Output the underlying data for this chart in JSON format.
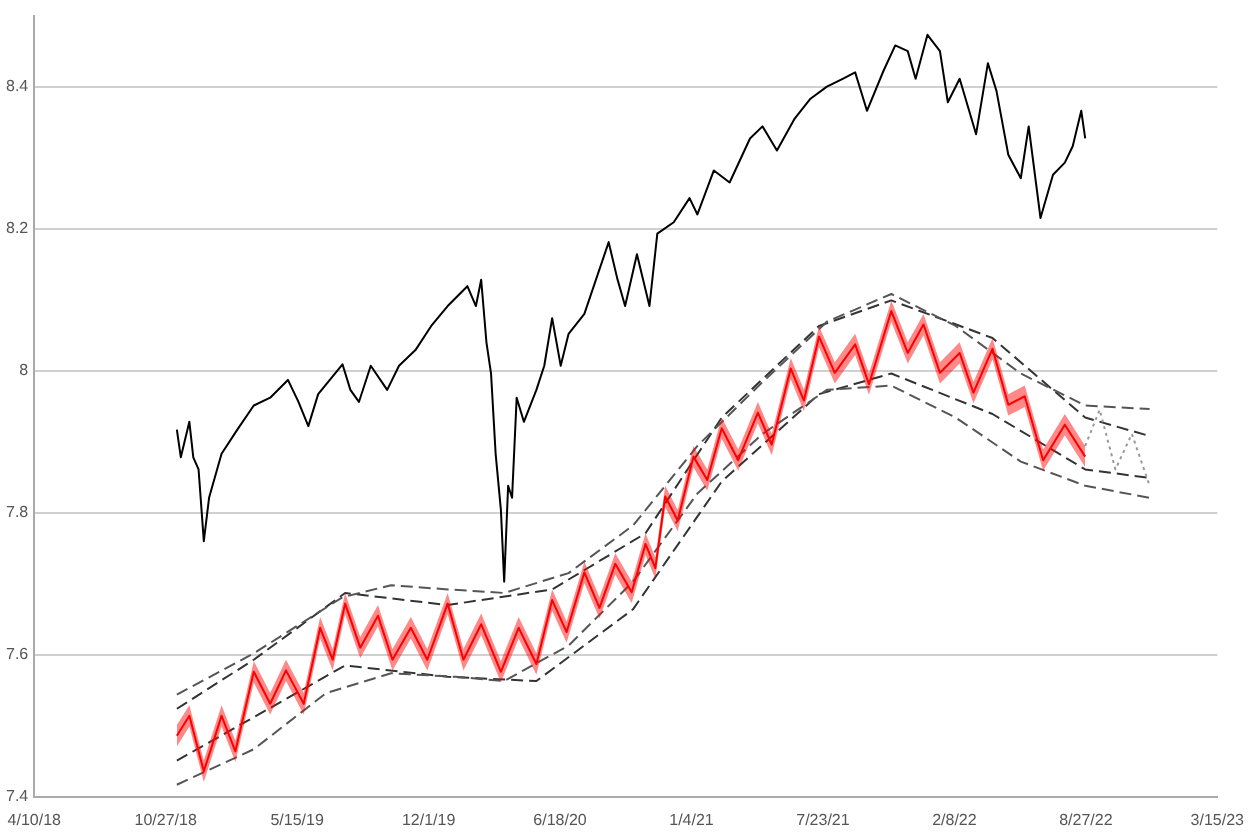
{
  "chart_data": {
    "type": "line",
    "xlim": [
      "2018-04-10",
      "2023-03-15"
    ],
    "xticks": [
      {
        "value": "2018-04-10",
        "label": "4/10/18"
      },
      {
        "value": "2018-10-27",
        "label": "10/27/18"
      },
      {
        "value": "2019-05-15",
        "label": "5/15/19"
      },
      {
        "value": "2019-12-01",
        "label": "12/1/19"
      },
      {
        "value": "2020-06-18",
        "label": "6/18/20"
      },
      {
        "value": "2021-01-04",
        "label": "1/4/21"
      },
      {
        "value": "2021-07-23",
        "label": "7/23/21"
      },
      {
        "value": "2022-02-08",
        "label": "2/8/22"
      },
      {
        "value": "2022-08-27",
        "label": "8/27/22"
      },
      {
        "value": "2023-03-15",
        "label": "3/15/23"
      }
    ],
    "ylim": [
      7.4,
      8.5
    ],
    "yticks": [
      7.4,
      7.6,
      7.8,
      8,
      8.2,
      8.4
    ],
    "grid": "y",
    "legend": false,
    "marker": "none",
    "series": [
      {
        "color": "#000000",
        "line_style": "solid",
        "x": [
          "2018-11-13",
          "2018-11-19",
          "2018-12-02",
          "2018-12-08",
          "2018-12-16",
          "2018-12-24",
          "2019-01-01",
          "2019-01-20",
          "2019-02-13",
          "2019-03-10",
          "2019-04-04",
          "2019-05-01",
          "2019-05-17",
          "2019-06-01",
          "2019-06-16",
          "2019-07-23",
          "2019-08-04",
          "2019-08-17",
          "2019-09-04",
          "2019-09-29",
          "2019-10-17",
          "2019-11-11",
          "2019-12-05",
          "2019-12-30",
          "2020-01-29",
          "2020-02-11",
          "2020-02-19",
          "2020-02-27",
          "2020-03-05",
          "2020-03-12",
          "2020-03-20",
          "2020-03-25",
          "2020-03-31",
          "2020-04-06",
          "2020-04-13",
          "2020-04-24",
          "2020-05-13",
          "2020-05-25",
          "2020-06-06",
          "2020-06-19",
          "2020-07-01",
          "2020-07-25",
          "2020-08-31",
          "2020-09-13",
          "2020-09-25",
          "2020-10-13",
          "2020-11-01",
          "2020-11-13",
          "2020-12-08",
          "2021-01-01",
          "2021-01-13",
          "2021-02-07",
          "2021-03-03",
          "2021-04-03",
          "2021-04-22",
          "2021-05-14",
          "2021-06-10",
          "2021-07-04",
          "2021-07-29",
          "2021-08-22",
          "2021-09-10",
          "2021-09-28",
          "2021-10-23",
          "2021-11-10",
          "2021-11-29",
          "2021-12-11",
          "2021-12-29",
          "2022-01-17",
          "2022-01-29",
          "2022-02-16",
          "2022-03-13",
          "2022-03-31",
          "2022-04-13",
          "2022-05-01",
          "2022-05-20",
          "2022-06-01",
          "2022-06-19",
          "2022-07-08",
          "2022-07-26",
          "2022-08-07",
          "2022-08-20",
          "2022-08-26"
        ],
        "values": [
          7.917,
          7.878,
          7.928,
          7.878,
          7.861,
          7.76,
          7.821,
          7.883,
          7.917,
          7.951,
          7.962,
          7.987,
          7.956,
          7.922,
          7.967,
          8.009,
          7.973,
          7.956,
          8.007,
          7.973,
          8.007,
          8.029,
          8.063,
          8.091,
          8.119,
          8.091,
          8.128,
          8.04,
          7.996,
          7.883,
          7.804,
          7.703,
          7.838,
          7.821,
          7.962,
          7.928,
          7.973,
          8.007,
          8.074,
          8.007,
          8.052,
          8.08,
          8.181,
          8.13,
          8.091,
          8.164,
          8.091,
          8.193,
          8.209,
          8.243,
          8.22,
          8.282,
          8.265,
          8.327,
          8.344,
          8.31,
          8.355,
          8.383,
          8.4,
          8.411,
          8.42,
          8.366,
          8.422,
          8.458,
          8.45,
          8.411,
          8.473,
          8.45,
          8.378,
          8.411,
          8.333,
          8.433,
          8.394,
          8.304,
          8.271,
          8.344,
          8.215,
          8.276,
          8.293,
          8.316,
          8.366,
          8.327
        ]
      },
      {
        "color": "#ff0000",
        "line_style": "solid",
        "x": [
          "2018-11-13",
          "2018-12-02",
          "2018-12-24",
          "2019-01-20",
          "2019-02-10",
          "2019-03-10",
          "2019-04-04",
          "2019-04-28",
          "2019-05-25",
          "2019-06-19",
          "2019-07-08",
          "2019-07-27",
          "2019-08-19",
          "2019-09-15",
          "2019-10-07",
          "2019-11-04",
          "2019-11-29",
          "2019-12-30",
          "2020-01-23",
          "2020-02-19",
          "2020-03-20",
          "2020-04-16",
          "2020-05-13",
          "2020-06-06",
          "2020-06-28",
          "2020-07-25",
          "2020-08-17",
          "2020-09-10",
          "2020-10-05",
          "2020-10-26",
          "2020-11-10",
          "2020-11-25",
          "2020-12-14",
          "2021-01-07",
          "2021-01-28",
          "2021-02-19",
          "2021-03-16",
          "2021-04-15",
          "2021-05-06",
          "2021-06-04",
          "2021-06-24",
          "2021-07-17",
          "2021-08-10",
          "2021-09-10",
          "2021-10-01",
          "2021-11-04",
          "2021-11-29",
          "2021-12-23",
          "2022-01-17",
          "2022-02-16",
          "2022-03-09",
          "2022-04-07",
          "2022-05-01",
          "2022-05-26",
          "2022-06-23",
          "2022-07-26",
          "2022-08-26"
        ],
        "values": [
          7.486,
          7.514,
          7.436,
          7.514,
          7.464,
          7.576,
          7.531,
          7.578,
          7.531,
          7.638,
          7.593,
          7.672,
          7.61,
          7.655,
          7.593,
          7.638,
          7.593,
          7.672,
          7.593,
          7.643,
          7.576,
          7.638,
          7.587,
          7.677,
          7.632,
          7.716,
          7.666,
          7.728,
          7.688,
          7.756,
          7.722,
          7.823,
          7.789,
          7.879,
          7.846,
          7.919,
          7.874,
          7.941,
          7.896,
          8.003,
          7.958,
          8.048,
          7.997,
          8.037,
          7.981,
          8.084,
          8.025,
          8.065,
          7.997,
          8.025,
          7.969,
          8.031,
          7.952,
          7.964,
          7.874,
          7.924,
          7.879
        ],
        "upper": [
          7.501,
          7.529,
          7.451,
          7.529,
          7.479,
          7.591,
          7.546,
          7.593,
          7.546,
          7.653,
          7.608,
          7.687,
          7.625,
          7.67,
          7.608,
          7.653,
          7.608,
          7.687,
          7.608,
          7.658,
          7.591,
          7.653,
          7.602,
          7.692,
          7.647,
          7.731,
          7.681,
          7.743,
          7.703,
          7.771,
          7.737,
          7.838,
          7.804,
          7.894,
          7.861,
          7.934,
          7.889,
          7.956,
          7.911,
          8.018,
          7.973,
          8.063,
          8.012,
          8.052,
          7.996,
          8.099,
          8.04,
          8.08,
          8.012,
          8.04,
          7.984,
          8.046,
          7.967,
          7.979,
          7.889,
          7.939,
          7.894
        ],
        "lower": [
          7.471,
          7.499,
          7.421,
          7.499,
          7.449,
          7.561,
          7.516,
          7.563,
          7.516,
          7.623,
          7.578,
          7.657,
          7.595,
          7.64,
          7.578,
          7.623,
          7.578,
          7.657,
          7.578,
          7.628,
          7.561,
          7.623,
          7.572,
          7.662,
          7.617,
          7.701,
          7.651,
          7.713,
          7.673,
          7.741,
          7.707,
          7.808,
          7.774,
          7.864,
          7.831,
          7.904,
          7.859,
          7.926,
          7.881,
          7.988,
          7.943,
          8.033,
          7.982,
          8.022,
          7.966,
          8.069,
          8.01,
          8.05,
          7.982,
          8.01,
          7.954,
          8.016,
          7.937,
          7.949,
          7.859,
          7.909,
          7.864
        ]
      },
      {
        "color": "#999999",
        "line_style": "dotted",
        "x": [
          "2022-08-26",
          "2022-09-17",
          "2022-10-11",
          "2022-11-05",
          "2022-12-02"
        ],
        "values": [
          7.894,
          7.945,
          7.861,
          7.911,
          7.838
        ]
      },
      {
        "color": "#555555",
        "line_style": "dashed",
        "x": [
          "2018-11-13",
          "2019-03-10",
          "2019-07-23",
          "2019-10-05",
          "2019-12-30",
          "2020-03-25",
          "2020-07-01",
          "2020-10-07",
          "2021-01-13",
          "2021-04-22",
          "2021-07-29",
          "2021-11-04",
          "2022-02-10",
          "2022-05-20",
          "2022-08-26",
          "2022-12-02"
        ],
        "values": [
          7.544,
          7.602,
          7.681,
          7.698,
          7.692,
          7.687,
          7.715,
          7.782,
          7.894,
          7.984,
          8.069,
          8.108,
          8.063,
          7.996,
          7.951,
          7.946
        ]
      },
      {
        "color": "#555555",
        "line_style": "dashed",
        "x": [
          "2018-11-13",
          "2019-03-10",
          "2019-06-28",
          "2019-10-05",
          "2020-01-11",
          "2020-03-25",
          "2020-07-01",
          "2020-10-07",
          "2021-01-13",
          "2021-04-22",
          "2021-07-29",
          "2021-11-04",
          "2022-02-10",
          "2022-05-20",
          "2022-08-26",
          "2022-12-02"
        ],
        "values": [
          7.417,
          7.467,
          7.546,
          7.574,
          7.569,
          7.563,
          7.613,
          7.703,
          7.827,
          7.911,
          7.973,
          7.979,
          7.934,
          7.872,
          7.838,
          7.821
        ]
      },
      {
        "color": "#333333",
        "line_style": "dashed",
        "x": [
          "2018-11-13",
          "2019-03-10",
          "2019-07-27",
          "2019-12-30",
          "2020-06-06",
          "2020-10-26",
          "2021-02-19",
          "2021-07-17",
          "2021-11-04",
          "2022-04-07",
          "2022-08-26",
          "2022-12-02"
        ],
        "values": [
          7.524,
          7.593,
          7.687,
          7.67,
          7.692,
          7.771,
          7.934,
          8.063,
          8.099,
          8.046,
          7.934,
          7.908
        ]
      },
      {
        "color": "#333333",
        "line_style": "dashed",
        "x": [
          "2018-11-13",
          "2019-03-10",
          "2019-07-27",
          "2019-12-30",
          "2020-05-13",
          "2020-10-07",
          "2021-02-19",
          "2021-07-17",
          "2021-11-04",
          "2022-04-07",
          "2022-08-26",
          "2022-12-02"
        ],
        "values": [
          7.451,
          7.512,
          7.585,
          7.569,
          7.563,
          7.664,
          7.844,
          7.967,
          7.996,
          7.939,
          7.861,
          7.849
        ]
      }
    ]
  }
}
